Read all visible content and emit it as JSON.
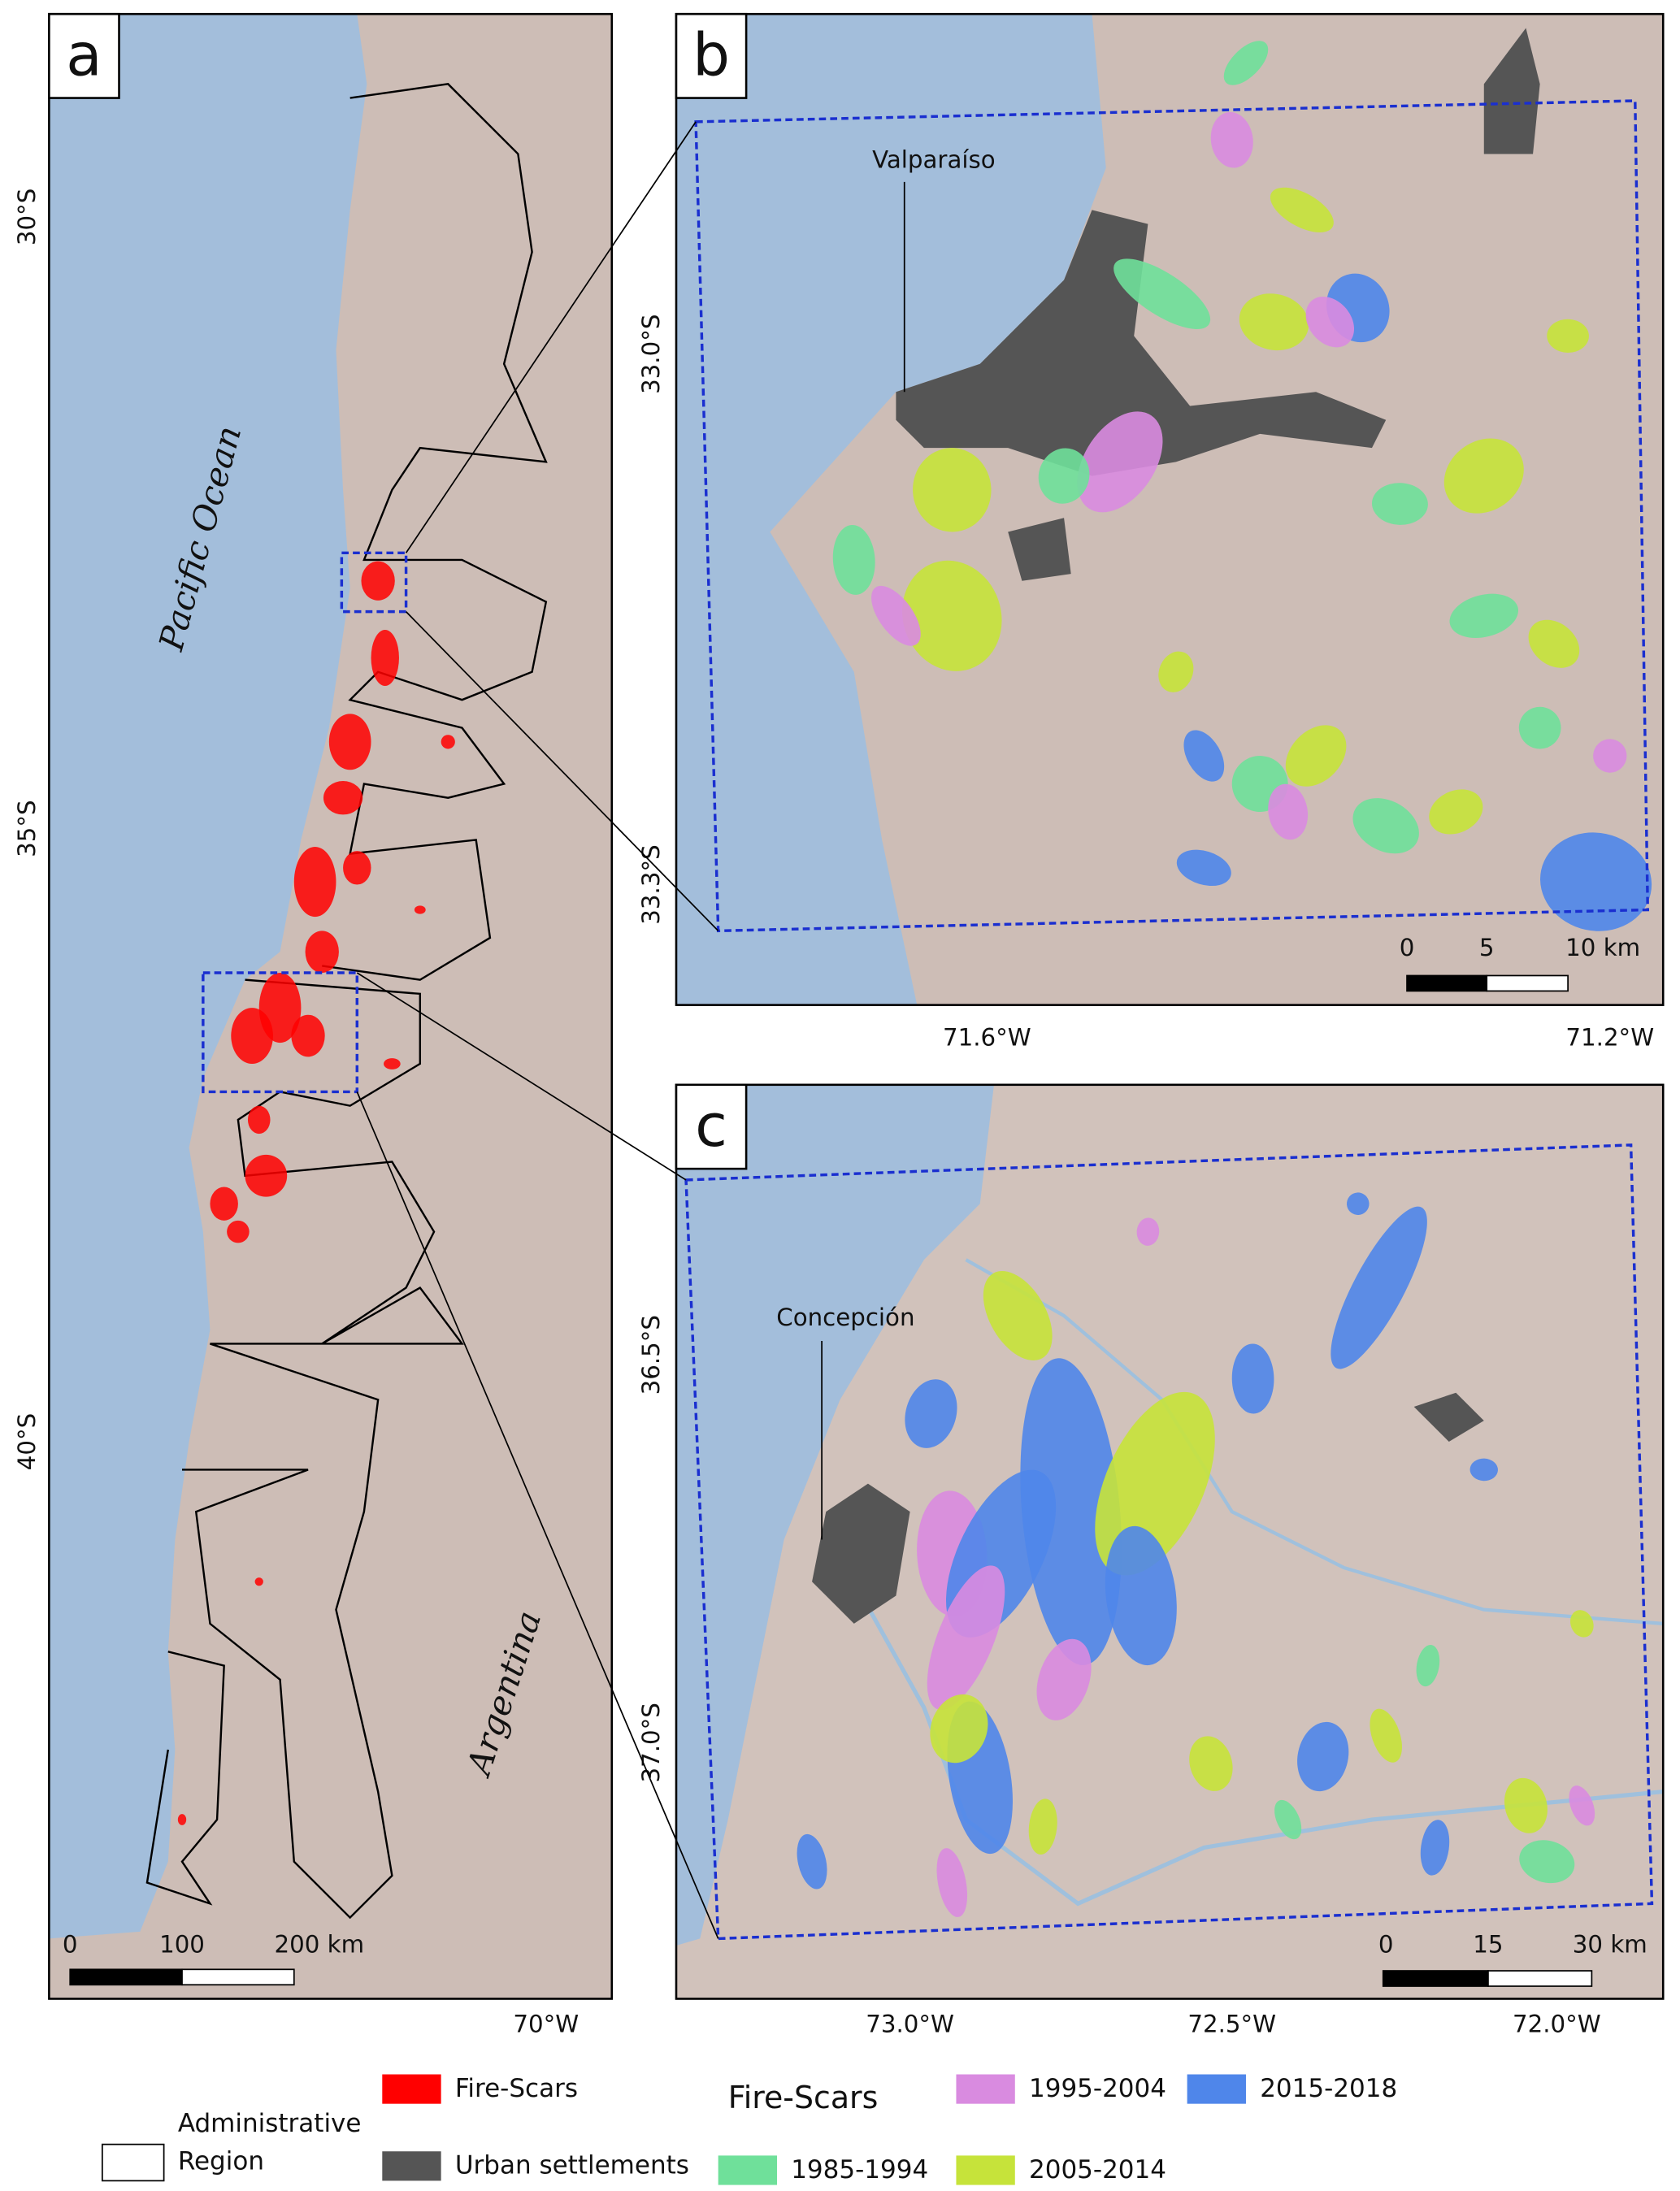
{
  "panel_a": {
    "letter": "a",
    "ocean_label": "Pacific Ocean",
    "country_label": "Argentina",
    "lat_labels": [
      "30°S",
      "35°S",
      "40°S"
    ],
    "lon_labels": [
      "70°W"
    ],
    "scale_labels": [
      "0",
      "100",
      "200 km"
    ]
  },
  "panel_b": {
    "letter": "b",
    "city_label": "Valparaíso",
    "lat_labels": [
      "33.0°S",
      "33.3°S"
    ],
    "lon_labels": [
      "71.6°W",
      "71.2°W"
    ],
    "scale_labels": [
      "0",
      "5",
      "10 km"
    ]
  },
  "panel_c": {
    "letter": "c",
    "city_label": "Concepción",
    "lat_labels": [
      "36.5°S",
      "37.0°S"
    ],
    "lon_labels": [
      "73.0°W",
      "72.5°W",
      "72.0°W"
    ],
    "scale_labels": [
      "0",
      "15",
      "30 km"
    ]
  },
  "legend": {
    "admin_region": [
      "Administrative",
      "Region"
    ],
    "fire_scars": {
      "label": "Fire-Scars",
      "color": "#ff0000"
    },
    "urban": {
      "label": "Urban settlements",
      "color": "#555555"
    },
    "period_title": "Fire-Scars",
    "periods": [
      {
        "label": "1985-1994",
        "color": "#6fe09a"
      },
      {
        "label": "1995-2004",
        "color": "#d98be0"
      },
      {
        "label": "2005-2014",
        "color": "#c6e33a"
      },
      {
        "label": "2015-2018",
        "color": "#4f86ea"
      }
    ]
  }
}
